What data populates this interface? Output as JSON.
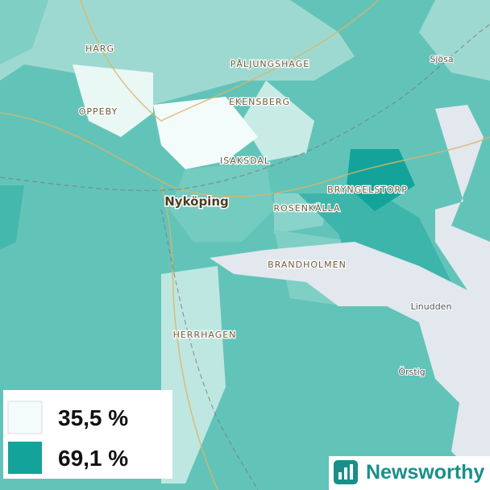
{
  "places": [
    "HARG",
    "PÅLJUNGSHAGE",
    "OPPEBY",
    "EKENSBERG",
    "ISAKSDAL",
    "Nyköping",
    "BRYNGELSTORP",
    "ROSENKÄLLA",
    "BRANDHOLMEN",
    "HERRHAGEN",
    "Sjösa",
    "Linudden",
    "Örstig"
  ],
  "legend": [
    {
      "label": "35,5 %",
      "color": "#f4fcfb"
    },
    {
      "label": "69,1 %",
      "color": "#13a39b"
    }
  ],
  "brand": "Newsworthy"
}
